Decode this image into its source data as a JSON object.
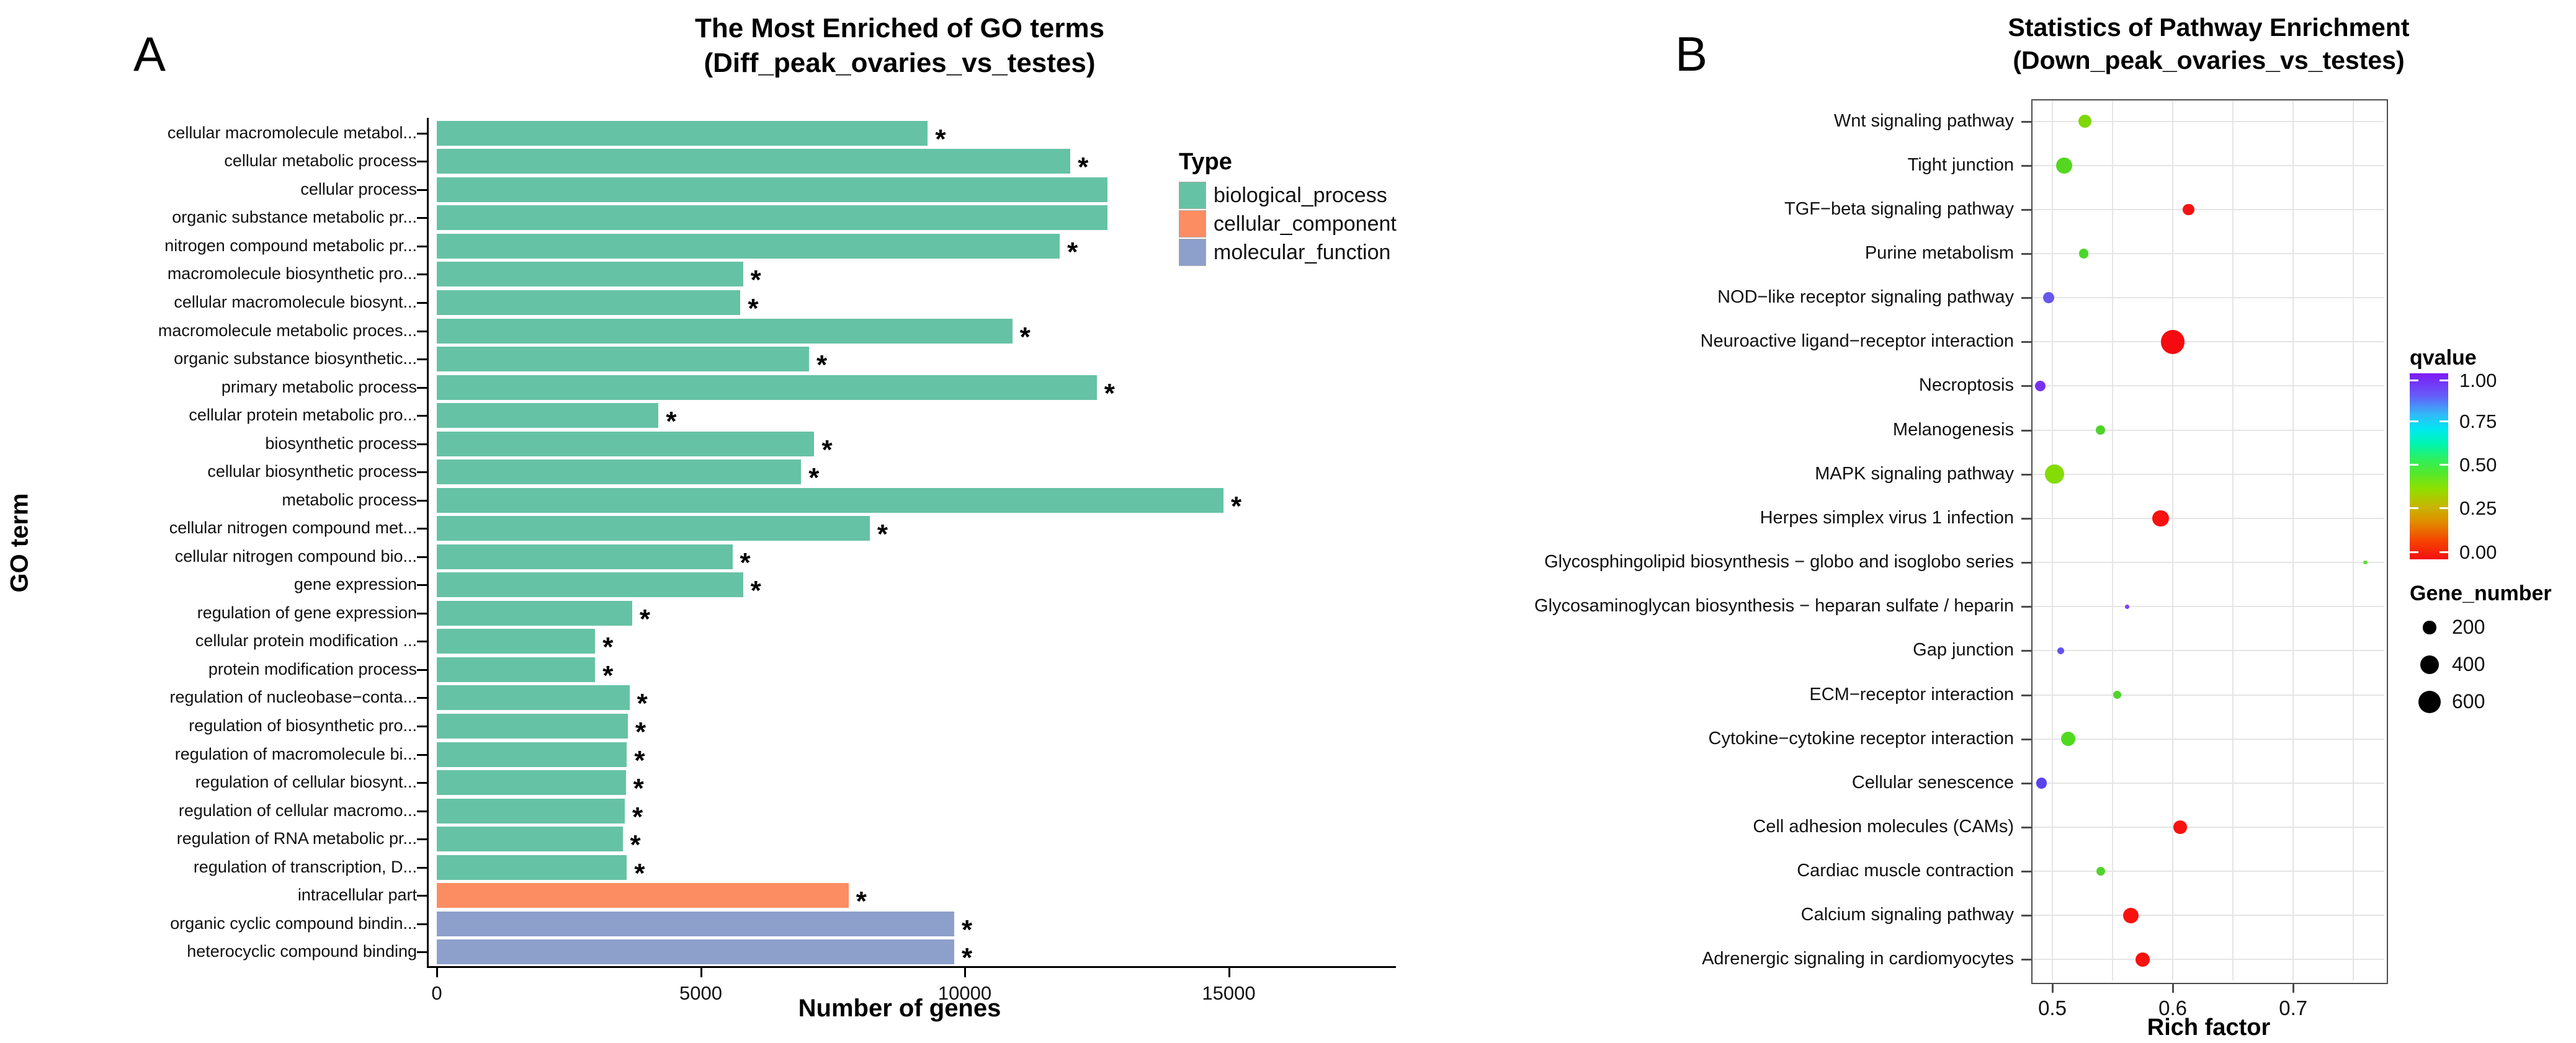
{
  "panel_a": {
    "letter": "A"
  },
  "panel_b": {
    "letter": "B"
  },
  "chart_data": [
    {
      "id": "go_enrichment_bar",
      "type": "bar",
      "orientation": "horizontal",
      "title": "The Most Enriched of GO terms",
      "subtitle": "(Diff_peak_ovaries_vs_testes)",
      "xlabel": "Number of genes",
      "ylabel": "GO term",
      "xlim": [
        0,
        18100
      ],
      "x_ticks": [
        0,
        5000,
        10000,
        15000
      ],
      "x_tick_labels": [
        "0",
        "5000",
        "10000",
        "15000"
      ],
      "grid": false,
      "legend_position": "right-top",
      "legend_title": "Type",
      "significance_marker": "*",
      "colors": {
        "biological_process": "#66C2A5",
        "cellular_component": "#FC8D62",
        "molecular_function": "#8DA0CB"
      },
      "legend": [
        {
          "label": "biological_process",
          "color": "#66C2A5"
        },
        {
          "label": "cellular_component",
          "color": "#FC8D62"
        },
        {
          "label": "molecular_function",
          "color": "#8DA0CB"
        }
      ],
      "bars": [
        {
          "label": "cellular macromolecule metabol...",
          "value": 9300,
          "type": "biological_process",
          "significant": true
        },
        {
          "label": "cellular metabolic process",
          "value": 12000,
          "type": "biological_process",
          "significant": true
        },
        {
          "label": "cellular process",
          "value": 12700,
          "type": "biological_process",
          "significant": false
        },
        {
          "label": "organic substance metabolic pr...",
          "value": 12700,
          "type": "biological_process",
          "significant": false
        },
        {
          "label": "nitrogen compound metabolic pr...",
          "value": 11800,
          "type": "biological_process",
          "significant": true
        },
        {
          "label": "macromolecule biosynthetic pro...",
          "value": 5800,
          "type": "biological_process",
          "significant": true
        },
        {
          "label": "cellular macromolecule biosynt...",
          "value": 5750,
          "type": "biological_process",
          "significant": true
        },
        {
          "label": "macromolecule metabolic proces...",
          "value": 10900,
          "type": "biological_process",
          "significant": true
        },
        {
          "label": "organic substance biosynthetic...",
          "value": 7050,
          "type": "biological_process",
          "significant": true
        },
        {
          "label": "primary metabolic process",
          "value": 12500,
          "type": "biological_process",
          "significant": true
        },
        {
          "label": "cellular protein metabolic pro...",
          "value": 4200,
          "type": "biological_process",
          "significant": true
        },
        {
          "label": "biosynthetic process",
          "value": 7150,
          "type": "biological_process",
          "significant": true
        },
        {
          "label": "cellular biosynthetic process",
          "value": 6900,
          "type": "biological_process",
          "significant": true
        },
        {
          "label": "metabolic process",
          "value": 14900,
          "type": "biological_process",
          "significant": true
        },
        {
          "label": "cellular nitrogen compound met...",
          "value": 8200,
          "type": "biological_process",
          "significant": true
        },
        {
          "label": "cellular nitrogen compound bio...",
          "value": 5600,
          "type": "biological_process",
          "significant": true
        },
        {
          "label": "gene expression",
          "value": 5800,
          "type": "biological_process",
          "significant": true
        },
        {
          "label": "regulation of gene expression",
          "value": 3700,
          "type": "biological_process",
          "significant": true
        },
        {
          "label": "cellular protein modification ...",
          "value": 3000,
          "type": "biological_process",
          "significant": true
        },
        {
          "label": "protein modification process",
          "value": 3000,
          "type": "biological_process",
          "significant": true
        },
        {
          "label": "regulation of nucleobase−conta...",
          "value": 3650,
          "type": "biological_process",
          "significant": true
        },
        {
          "label": "regulation of biosynthetic pro...",
          "value": 3620,
          "type": "biological_process",
          "significant": true
        },
        {
          "label": "regulation of macromolecule bi...",
          "value": 3600,
          "type": "biological_process",
          "significant": true
        },
        {
          "label": "regulation of cellular biosynt...",
          "value": 3580,
          "type": "biological_process",
          "significant": true
        },
        {
          "label": "regulation of cellular macromo...",
          "value": 3560,
          "type": "biological_process",
          "significant": true
        },
        {
          "label": "regulation of RNA metabolic pr...",
          "value": 3520,
          "type": "biological_process",
          "significant": true
        },
        {
          "label": "regulation of transcription, D...",
          "value": 3600,
          "type": "biological_process",
          "significant": true
        },
        {
          "label": "intracellular part",
          "value": 7800,
          "type": "cellular_component",
          "significant": true
        },
        {
          "label": "organic cyclic compound bindin...",
          "value": 9800,
          "type": "molecular_function",
          "significant": true
        },
        {
          "label": "heterocyclic compound binding",
          "value": 9800,
          "type": "molecular_function",
          "significant": true
        }
      ]
    },
    {
      "id": "pathway_enrichment_scatter",
      "type": "scatter",
      "title": "Statistics of Pathway Enrichment",
      "subtitle": "(Down_peak_ovaries_vs_testes)",
      "xlabel": "Rich factor",
      "xlim": [
        0.48,
        0.775
      ],
      "x_ticks": [
        0.5,
        0.6,
        0.7
      ],
      "x_tick_labels": [
        "0.5",
        "0.6",
        "0.7"
      ],
      "x_gridlines": [
        0.5,
        0.55,
        0.6,
        0.65,
        0.7,
        0.75
      ],
      "grid": true,
      "color_legend": {
        "title": "qvalue",
        "tick_labels": [
          "1.00",
          "0.75",
          "0.50",
          "0.25",
          "0.00"
        ],
        "max": 1.0,
        "min": 0.0
      },
      "size_legend": {
        "title": "Gene_number",
        "items": [
          {
            "value": 200,
            "label": "200"
          },
          {
            "value": 400,
            "label": "400"
          },
          {
            "value": 600,
            "label": "600"
          }
        ]
      },
      "points": [
        {
          "pathway": "Wnt signaling pathway",
          "rich_factor": 0.527,
          "gene_number": 210,
          "qvalue": 0.3,
          "color": "#7FD800"
        },
        {
          "pathway": "Tight junction",
          "rich_factor": 0.51,
          "gene_number": 300,
          "qvalue": 0.32,
          "color": "#55D620"
        },
        {
          "pathway": "TGF−beta signaling pathway",
          "rich_factor": 0.613,
          "gene_number": 150,
          "qvalue": 0.02,
          "color": "#F81213"
        },
        {
          "pathway": "Purine metabolism",
          "rich_factor": 0.526,
          "gene_number": 110,
          "qvalue": 0.35,
          "color": "#48D828"
        },
        {
          "pathway": "NOD−like receptor signaling pathway",
          "rich_factor": 0.497,
          "gene_number": 140,
          "qvalue": 0.85,
          "color": "#6757EE"
        },
        {
          "pathway": "Neuroactive ligand−receptor interaction",
          "rich_factor": 0.6,
          "gene_number": 660,
          "qvalue": 0.0,
          "color": "#F50A10"
        },
        {
          "pathway": "Necroptosis",
          "rich_factor": 0.49,
          "gene_number": 130,
          "qvalue": 0.92,
          "color": "#7731F0"
        },
        {
          "pathway": "Melanogenesis",
          "rich_factor": 0.54,
          "gene_number": 95,
          "qvalue": 0.35,
          "color": "#4FD32A"
        },
        {
          "pathway": "MAPK signaling pathway",
          "rich_factor": 0.502,
          "gene_number": 430,
          "qvalue": 0.3,
          "color": "#85DC05"
        },
        {
          "pathway": "Herpes simplex virus 1 infection",
          "rich_factor": 0.59,
          "gene_number": 320,
          "qvalue": 0.01,
          "color": "#F8110F"
        },
        {
          "pathway": "Glycosphingolipid biosynthesis − globo and isoglobo series",
          "rich_factor": 0.76,
          "gene_number": 20,
          "qvalue": 0.38,
          "color": "#5FDC3C"
        },
        {
          "pathway": "Glycosaminoglycan biosynthesis − heparan sulfate / heparin",
          "rich_factor": 0.562,
          "gene_number": 20,
          "qvalue": 0.88,
          "color": "#7744EE"
        },
        {
          "pathway": "Gap junction",
          "rich_factor": 0.507,
          "gene_number": 60,
          "qvalue": 0.82,
          "color": "#6452EE"
        },
        {
          "pathway": "ECM−receptor interaction",
          "rich_factor": 0.554,
          "gene_number": 75,
          "qvalue": 0.36,
          "color": "#50D52C"
        },
        {
          "pathway": "Cytokine−cytokine receptor interaction",
          "rich_factor": 0.513,
          "gene_number": 240,
          "qvalue": 0.33,
          "color": "#4FDA1F"
        },
        {
          "pathway": "Cellular senescence",
          "rich_factor": 0.491,
          "gene_number": 140,
          "qvalue": 0.87,
          "color": "#5A43EC"
        },
        {
          "pathway": "Cell adhesion molecules (CAMs)",
          "rich_factor": 0.606,
          "gene_number": 210,
          "qvalue": 0.01,
          "color": "#F8110F"
        },
        {
          "pathway": "Cardiac muscle contraction",
          "rich_factor": 0.54,
          "gene_number": 85,
          "qvalue": 0.35,
          "color": "#52D32A"
        },
        {
          "pathway": "Calcium signaling pathway",
          "rich_factor": 0.565,
          "gene_number": 280,
          "qvalue": 0.02,
          "color": "#F8120F"
        },
        {
          "pathway": "Adrenergic signaling in cardiomyocytes",
          "rich_factor": 0.575,
          "gene_number": 230,
          "qvalue": 0.02,
          "color": "#F8120F"
        }
      ]
    }
  ]
}
